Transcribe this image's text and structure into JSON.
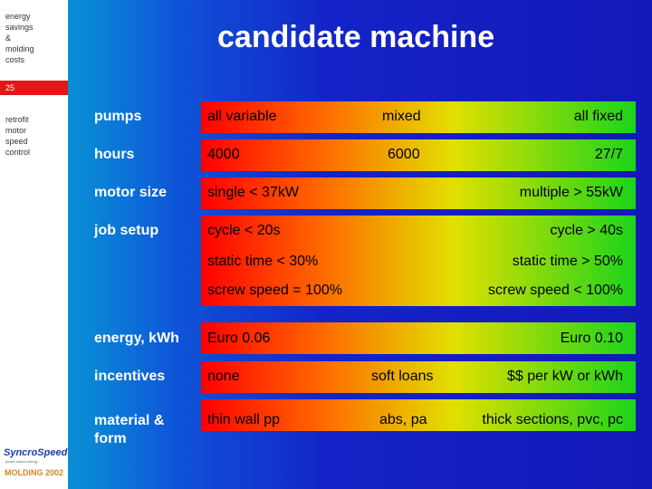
{
  "sidebar": {
    "top_text": "energy\nsavings\n&\nmolding\ncosts",
    "page_number": "25",
    "section_text": "retrofit\nmotor\nspeed\ncontrol",
    "logo_syncro": "Syncro",
    "logo_speed": "Speed",
    "logo_tagline": "power saves energy",
    "logo_molding": "MOLDING",
    "logo_year": "2002"
  },
  "title": "candidate machine",
  "rows": {
    "pumps": {
      "label": "pumps",
      "c1": "all variable",
      "c2": "mixed",
      "c3": "all fixed"
    },
    "hours": {
      "label": "hours",
      "c1": "4000",
      "c2": "6000",
      "c3": "27/7"
    },
    "motor_size": {
      "label": "motor size",
      "c1": "single < 37kW",
      "c3": "multiple > 55kW"
    },
    "job_setup": {
      "label": "job setup",
      "l1a": "cycle < 20s",
      "l1b": "cycle > 40s",
      "l2a": "static time < 30%",
      "l2b": "static time > 50%",
      "l3a": "screw speed = 100%",
      "l3b": "screw speed < 100%"
    },
    "energy": {
      "label": "energy, kWh",
      "c1": "Euro 0.06",
      "c3": "Euro 0.10"
    },
    "incentives": {
      "label": "incentives",
      "c1": "none",
      "c2": "soft loans",
      "c3": "$$ per kW or kWh"
    },
    "material": {
      "label": "material & form",
      "c1": "thin wall pp",
      "c2": "abs, pa",
      "c3": "thick sections, pvc, pc"
    }
  }
}
